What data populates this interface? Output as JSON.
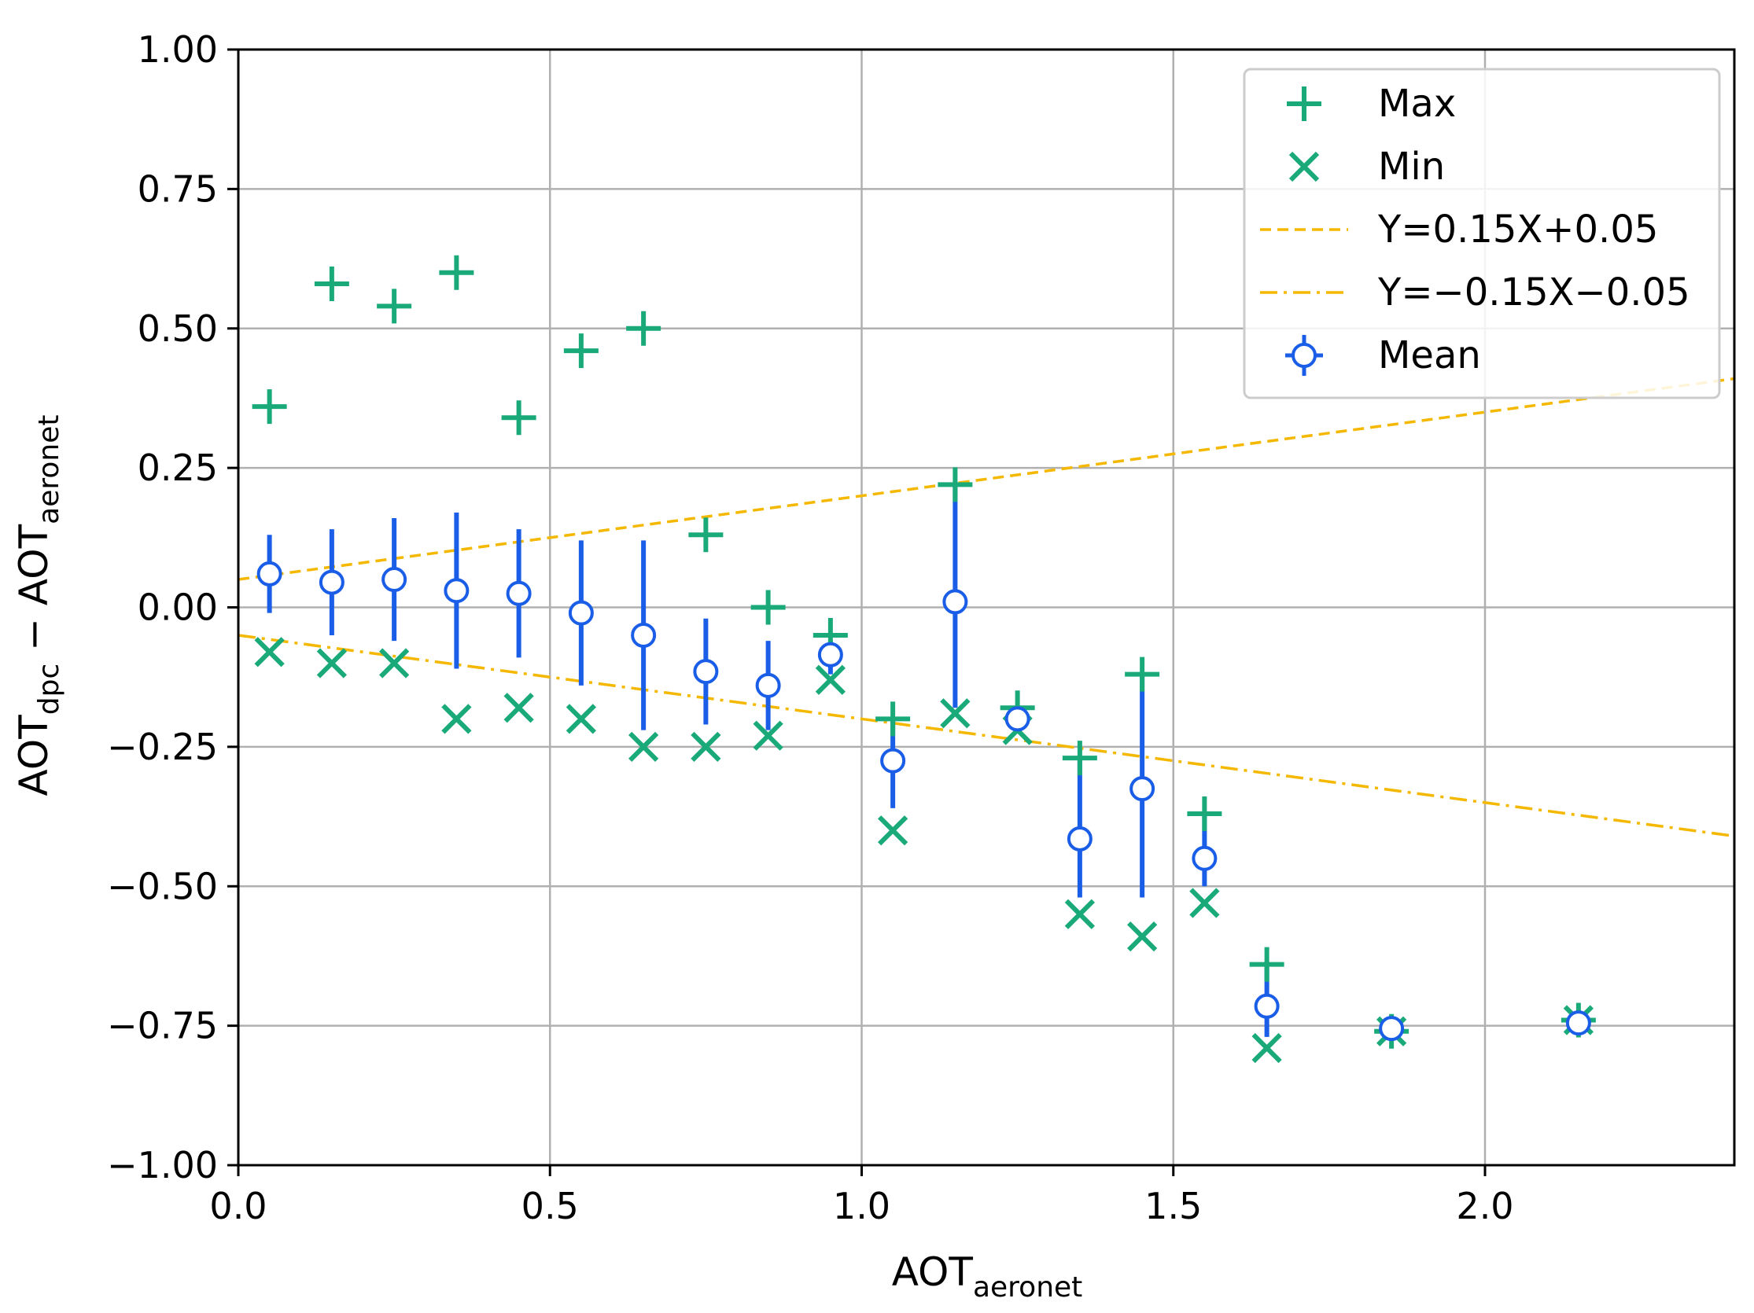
{
  "chart_data": {
    "type": "scatter",
    "xlabel": {
      "main": "AOT",
      "sub": "aeronet"
    },
    "ylabel": {
      "main1": "AOT",
      "sub1": "dpc",
      "op": " − ",
      "main2": "AOT",
      "sub2": "aeronet"
    },
    "xlim": [
      0.0,
      2.4
    ],
    "ylim": [
      -1.0,
      1.0
    ],
    "x_ticks": [
      0.0,
      0.5,
      1.0,
      1.5,
      2.0
    ],
    "x_tick_labels": [
      "0.0",
      "0.5",
      "1.0",
      "1.5",
      "2.0"
    ],
    "y_ticks": [
      1.0,
      0.75,
      0.5,
      0.25,
      0.0,
      -0.25,
      -0.5,
      -0.75,
      -1.0
    ],
    "y_tick_labels": [
      "1.00",
      "0.75",
      "0.50",
      "0.25",
      "0.00",
      "−0.25",
      "−0.50",
      "−0.75",
      "−1.00"
    ],
    "grid": true,
    "legend_position": "top-right",
    "series": [
      {
        "name": "Max",
        "marker": "plus",
        "color": "#1aaa7a",
        "x": [
          0.05,
          0.15,
          0.25,
          0.35,
          0.45,
          0.55,
          0.65,
          0.75,
          0.85,
          0.95,
          1.05,
          1.15,
          1.25,
          1.35,
          1.45,
          1.55,
          1.65,
          1.85,
          2.15
        ],
        "y": [
          0.36,
          0.58,
          0.54,
          0.6,
          0.34,
          0.46,
          0.5,
          0.13,
          0.0,
          -0.05,
          -0.2,
          0.22,
          -0.18,
          -0.27,
          -0.12,
          -0.37,
          -0.64,
          -0.76,
          -0.74
        ]
      },
      {
        "name": "Min",
        "marker": "x",
        "color": "#1aaa7a",
        "x": [
          0.05,
          0.15,
          0.25,
          0.35,
          0.45,
          0.55,
          0.65,
          0.75,
          0.85,
          0.95,
          1.05,
          1.15,
          1.25,
          1.35,
          1.45,
          1.55,
          1.65,
          1.85,
          2.15
        ],
        "y": [
          -0.08,
          -0.1,
          -0.1,
          -0.2,
          -0.18,
          -0.2,
          -0.25,
          -0.25,
          -0.23,
          -0.13,
          -0.4,
          -0.19,
          -0.22,
          -0.55,
          -0.59,
          -0.53,
          -0.79,
          -0.76,
          -0.74
        ]
      },
      {
        "name": "Y=0.15X+0.05",
        "type": "line",
        "style": "dashed",
        "color": "#f5b800",
        "x": [
          0.0,
          2.4
        ],
        "y": [
          0.05,
          0.41
        ]
      },
      {
        "name": "Y=−0.15X−0.05",
        "type": "line",
        "style": "dashdot",
        "color": "#f5b800",
        "x": [
          0.0,
          2.4
        ],
        "y": [
          -0.05,
          -0.41
        ]
      },
      {
        "name": "Mean",
        "marker": "circle-errorbar",
        "color": "#1a5ee8",
        "x": [
          0.05,
          0.15,
          0.25,
          0.35,
          0.45,
          0.55,
          0.65,
          0.75,
          0.85,
          0.95,
          1.05,
          1.15,
          1.25,
          1.35,
          1.45,
          1.55,
          1.65,
          1.85,
          2.15
        ],
        "y": [
          0.06,
          0.045,
          0.05,
          0.03,
          0.025,
          -0.01,
          -0.05,
          -0.115,
          -0.14,
          -0.085,
          -0.275,
          0.01,
          -0.2,
          -0.415,
          -0.325,
          -0.45,
          -0.715,
          -0.755,
          -0.745
        ],
        "err_low": [
          -0.01,
          -0.05,
          -0.06,
          -0.11,
          -0.09,
          -0.14,
          -0.22,
          -0.21,
          -0.22,
          -0.12,
          -0.36,
          -0.18,
          -0.21,
          -0.52,
          -0.52,
          -0.5,
          -0.77,
          -0.76,
          -0.75
        ],
        "err_high": [
          0.13,
          0.14,
          0.16,
          0.17,
          0.14,
          0.12,
          0.12,
          -0.02,
          -0.06,
          -0.06,
          -0.2,
          0.22,
          -0.19,
          -0.27,
          -0.12,
          -0.37,
          -0.64,
          -0.75,
          -0.74
        ]
      }
    ],
    "legend": [
      "Max",
      "Min",
      "Y=0.15X+0.05",
      "Y=−0.15X−0.05",
      "Mean"
    ]
  }
}
